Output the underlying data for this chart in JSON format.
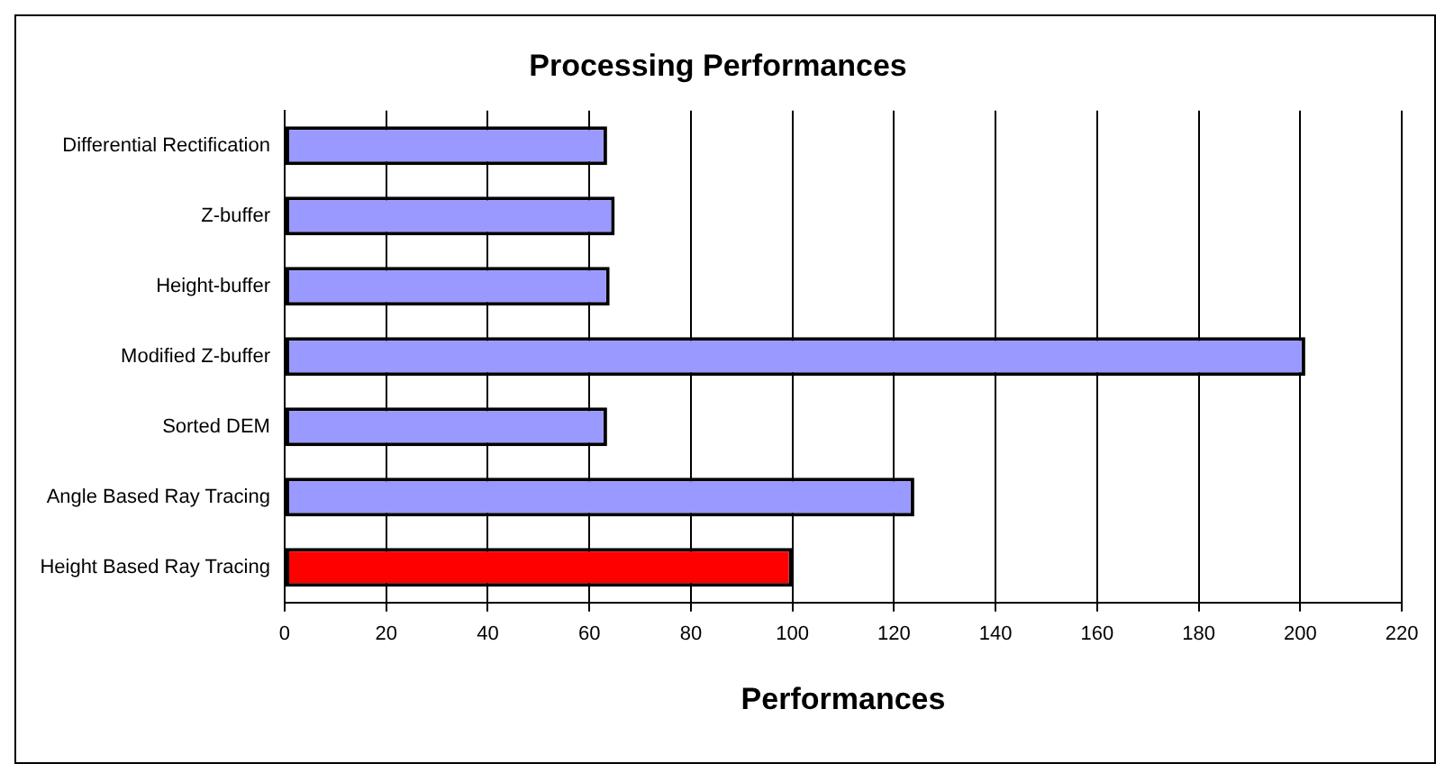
{
  "chart_data": {
    "type": "bar",
    "orientation": "horizontal",
    "title": "Processing Performances",
    "xlabel": "Performances",
    "categories": [
      "Differential Rectification",
      "Z-buffer",
      "Height-buffer",
      "Modified Z-buffer",
      "Sorted DEM",
      "Angle Based Ray Tracing",
      "Height Based Ray Tracing"
    ],
    "values": [
      63.5,
      65,
      64,
      201,
      63.5,
      124,
      100
    ],
    "colors": [
      "#9999ff",
      "#9999ff",
      "#9999ff",
      "#9999ff",
      "#9999ff",
      "#9999ff",
      "#ff0000"
    ],
    "xlim": [
      0,
      220
    ],
    "xticks": [
      0,
      20,
      40,
      60,
      80,
      100,
      120,
      140,
      160,
      180,
      200,
      220
    ],
    "grid": "x",
    "legend": false
  }
}
